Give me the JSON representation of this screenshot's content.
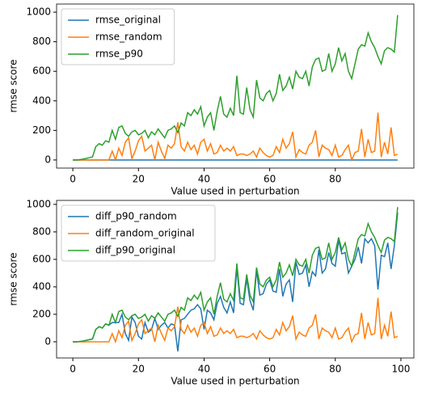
{
  "chart_data": [
    {
      "type": "line",
      "xlabel": "Value used in perturbation",
      "ylabel": "rmse score",
      "xlim": [
        -4.95,
        103.95
      ],
      "xticks": [
        0,
        20,
        40,
        60,
        80
      ],
      "ylim": [
        -55,
        1055
      ],
      "yticks": [
        0,
        200,
        400,
        600,
        800,
        1000
      ],
      "legend": "upper left",
      "x": [
        0,
        1,
        2,
        3,
        4,
        5,
        6,
        7,
        8,
        9,
        10,
        11,
        12,
        13,
        14,
        15,
        16,
        17,
        18,
        19,
        20,
        21,
        22,
        23,
        24,
        25,
        26,
        27,
        28,
        29,
        30,
        31,
        32,
        33,
        34,
        35,
        36,
        37,
        38,
        39,
        40,
        41,
        42,
        43,
        44,
        45,
        46,
        47,
        48,
        49,
        50,
        51,
        52,
        53,
        54,
        55,
        56,
        57,
        58,
        59,
        60,
        61,
        62,
        63,
        64,
        65,
        66,
        67,
        68,
        69,
        70,
        71,
        72,
        73,
        74,
        75,
        76,
        77,
        78,
        79,
        80,
        81,
        82,
        83,
        84,
        85,
        86,
        87,
        88,
        89,
        90,
        91,
        92,
        93,
        94,
        95,
        96,
        97,
        98,
        99
      ],
      "series": [
        {
          "name": "rmse_original",
          "color": "#1f77b4",
          "values": [
            0,
            0,
            0,
            0,
            0,
            0,
            0,
            0,
            0,
            0,
            0,
            0,
            0,
            0,
            0,
            0,
            0,
            0,
            0,
            0,
            0,
            0,
            0,
            0,
            0,
            0,
            0,
            0,
            0,
            0,
            0,
            0,
            0,
            0,
            0,
            0,
            0,
            0,
            0,
            0,
            0,
            0,
            0,
            0,
            0,
            0,
            0,
            0,
            0,
            0,
            0,
            0,
            0,
            0,
            0,
            0,
            0,
            0,
            0,
            0,
            0,
            0,
            0,
            0,
            0,
            0,
            0,
            0,
            0,
            0,
            0,
            0,
            0,
            0,
            0,
            0,
            0,
            0,
            0,
            0,
            0,
            0,
            0,
            0,
            0,
            0,
            0,
            0,
            0,
            0,
            0,
            0,
            0,
            0,
            0,
            0,
            0,
            0,
            0,
            0
          ]
        },
        {
          "name": "rmse_random",
          "color": "#ff7f0e",
          "values": [
            0,
            0,
            0,
            0,
            0,
            0,
            0,
            0,
            0,
            0,
            0,
            0,
            60,
            0,
            80,
            30,
            120,
            150,
            10,
            60,
            130,
            160,
            60,
            80,
            100,
            0,
            120,
            60,
            10,
            100,
            80,
            110,
            255,
            90,
            60,
            120,
            70,
            100,
            40,
            120,
            140,
            60,
            110,
            40,
            50,
            100,
            60,
            80,
            60,
            90,
            30,
            40,
            40,
            30,
            40,
            60,
            20,
            80,
            50,
            30,
            20,
            30,
            90,
            50,
            140,
            80,
            110,
            190,
            20,
            70,
            50,
            40,
            100,
            120,
            200,
            20,
            100,
            80,
            70,
            30,
            100,
            20,
            30,
            70,
            100,
            0,
            50,
            60,
            210,
            20,
            140,
            50,
            60,
            320,
            20,
            120,
            40,
            220,
            30,
            40
          ]
        },
        {
          "name": "rmse_p90",
          "color": "#2ca02c",
          "values": [
            0,
            0,
            2,
            5,
            10,
            15,
            20,
            90,
            110,
            100,
            130,
            120,
            200,
            140,
            220,
            230,
            180,
            160,
            190,
            200,
            170,
            180,
            200,
            150,
            190,
            170,
            210,
            180,
            150,
            200,
            210,
            230,
            185,
            250,
            230,
            320,
            300,
            340,
            310,
            360,
            230,
            290,
            320,
            200,
            330,
            430,
            310,
            290,
            350,
            300,
            570,
            320,
            310,
            490,
            340,
            290,
            540,
            420,
            400,
            450,
            470,
            400,
            450,
            580,
            470,
            500,
            560,
            480,
            600,
            560,
            550,
            600,
            500,
            630,
            680,
            690,
            600,
            610,
            720,
            600,
            650,
            760,
            670,
            720,
            600,
            550,
            650,
            750,
            780,
            770,
            860,
            800,
            760,
            700,
            650,
            740,
            760,
            750,
            730,
            980
          ]
        }
      ]
    },
    {
      "type": "line",
      "xlabel": "Value used in perturbation",
      "ylabel": "rmse score",
      "xlim": [
        -4.95,
        103.95
      ],
      "xticks": [
        0,
        20,
        40,
        60,
        80,
        100
      ],
      "ylim": [
        -118,
        1029
      ],
      "yticks": [
        0,
        200,
        400,
        600,
        800,
        1000
      ],
      "legend": "upper left",
      "x": [
        0,
        1,
        2,
        3,
        4,
        5,
        6,
        7,
        8,
        9,
        10,
        11,
        12,
        13,
        14,
        15,
        16,
        17,
        18,
        19,
        20,
        21,
        22,
        23,
        24,
        25,
        26,
        27,
        28,
        29,
        30,
        31,
        32,
        33,
        34,
        35,
        36,
        37,
        38,
        39,
        40,
        41,
        42,
        43,
        44,
        45,
        46,
        47,
        48,
        49,
        50,
        51,
        52,
        53,
        54,
        55,
        56,
        57,
        58,
        59,
        60,
        61,
        62,
        63,
        64,
        65,
        66,
        67,
        68,
        69,
        70,
        71,
        72,
        73,
        74,
        75,
        76,
        77,
        78,
        79,
        80,
        81,
        82,
        83,
        84,
        85,
        86,
        87,
        88,
        89,
        90,
        91,
        92,
        93,
        94,
        95,
        96,
        97,
        98,
        99
      ],
      "series": [
        {
          "name": "diff_p90_random",
          "color": "#1f77b4",
          "values": [
            0,
            0,
            2,
            5,
            10,
            15,
            20,
            90,
            110,
            100,
            130,
            120,
            140,
            140,
            140,
            200,
            60,
            10,
            180,
            140,
            40,
            20,
            140,
            70,
            90,
            170,
            90,
            120,
            140,
            100,
            130,
            120,
            -70,
            160,
            170,
            200,
            230,
            240,
            270,
            240,
            90,
            230,
            210,
            160,
            280,
            330,
            250,
            210,
            290,
            210,
            540,
            280,
            270,
            460,
            300,
            230,
            520,
            340,
            350,
            420,
            450,
            370,
            360,
            530,
            330,
            420,
            450,
            290,
            580,
            490,
            500,
            560,
            400,
            510,
            480,
            670,
            500,
            530,
            650,
            570,
            550,
            740,
            640,
            650,
            500,
            550,
            600,
            690,
            570,
            750,
            720,
            750,
            700,
            380,
            630,
            620,
            720,
            530,
            700,
            940
          ]
        },
        {
          "name": "diff_random_original",
          "color": "#ff7f0e",
          "values": [
            0,
            0,
            0,
            0,
            0,
            0,
            0,
            0,
            0,
            0,
            0,
            0,
            60,
            0,
            80,
            30,
            120,
            150,
            10,
            60,
            130,
            160,
            60,
            80,
            100,
            0,
            120,
            60,
            10,
            100,
            80,
            110,
            255,
            90,
            60,
            120,
            70,
            100,
            40,
            120,
            140,
            60,
            110,
            40,
            50,
            100,
            60,
            80,
            60,
            90,
            30,
            40,
            40,
            30,
            40,
            60,
            20,
            80,
            50,
            30,
            20,
            30,
            90,
            50,
            140,
            80,
            110,
            190,
            20,
            70,
            50,
            40,
            100,
            120,
            200,
            20,
            100,
            80,
            70,
            30,
            100,
            20,
            30,
            70,
            100,
            0,
            50,
            60,
            210,
            20,
            140,
            50,
            60,
            320,
            20,
            120,
            40,
            220,
            30,
            40
          ]
        },
        {
          "name": "diff_p90_original",
          "color": "#2ca02c",
          "values": [
            0,
            0,
            2,
            5,
            10,
            15,
            20,
            90,
            110,
            100,
            130,
            120,
            200,
            140,
            220,
            230,
            180,
            160,
            190,
            200,
            170,
            180,
            200,
            150,
            190,
            170,
            210,
            180,
            150,
            200,
            210,
            230,
            185,
            250,
            230,
            320,
            300,
            340,
            310,
            360,
            230,
            290,
            320,
            200,
            330,
            430,
            310,
            290,
            350,
            300,
            570,
            320,
            310,
            490,
            340,
            290,
            540,
            420,
            400,
            450,
            470,
            400,
            450,
            580,
            470,
            500,
            560,
            480,
            600,
            560,
            550,
            600,
            500,
            630,
            680,
            690,
            600,
            610,
            720,
            600,
            650,
            760,
            670,
            720,
            600,
            550,
            650,
            750,
            780,
            770,
            860,
            800,
            760,
            700,
            650,
            740,
            760,
            750,
            730,
            980
          ]
        }
      ]
    }
  ]
}
